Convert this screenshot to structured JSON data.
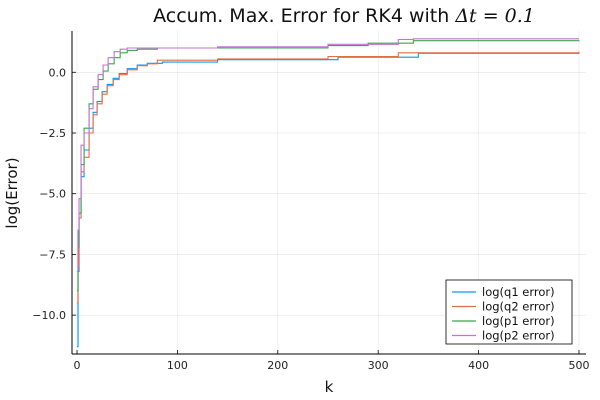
{
  "chart_data": {
    "type": "line",
    "title_text": "Accum. Max. Error for RK4 with ",
    "title_math": "Δt = 0.1",
    "xlabel": "k",
    "ylabel": "log(Error)",
    "xlim": [
      -5,
      507
    ],
    "ylim": [
      -11.6,
      1.7
    ],
    "xticks": [
      0,
      100,
      200,
      300,
      400,
      500
    ],
    "xtick_labels": [
      "0",
      "100",
      "200",
      "300",
      "400",
      "500"
    ],
    "yticks": [
      -10.0,
      -7.5,
      -5.0,
      -2.5,
      0.0
    ],
    "ytick_labels": [
      "−10.0",
      "−7.5",
      "−5.0",
      "−2.5",
      "0.0"
    ],
    "grid": true,
    "legend_position": "bottom-right",
    "step": true,
    "series": [
      {
        "name": "log(q1 error)",
        "color": "#009AFA",
        "x": [
          0,
          1,
          2,
          4,
          7,
          12,
          16,
          20,
          25,
          30,
          36,
          42,
          50,
          60,
          70,
          85,
          140,
          260,
          340,
          500
        ],
        "y": [
          -11.3,
          -8.2,
          -6.0,
          -4.3,
          -3.2,
          -2.3,
          -1.65,
          -1.2,
          -0.8,
          -0.5,
          -0.25,
          -0.05,
          0.15,
          0.3,
          0.37,
          0.42,
          0.52,
          0.62,
          0.78,
          0.8
        ]
      },
      {
        "name": "log(q2 error)",
        "color": "#E36F47",
        "x": [
          0,
          1,
          2,
          4,
          7,
          12,
          16,
          20,
          25,
          30,
          36,
          42,
          50,
          60,
          70,
          80,
          140,
          250,
          320,
          500
        ],
        "y": [
          -9.5,
          -8.0,
          -6.0,
          -4.1,
          -3.5,
          -2.5,
          -1.75,
          -1.3,
          -0.9,
          -0.55,
          -0.3,
          -0.1,
          0.1,
          0.27,
          0.35,
          0.5,
          0.55,
          0.65,
          0.8,
          0.85
        ]
      },
      {
        "name": "log(p1 error)",
        "color": "#3EA44E",
        "x": [
          0,
          1,
          2,
          4,
          7,
          12,
          16,
          21,
          26,
          31,
          37,
          43,
          50,
          60,
          80,
          140,
          250,
          290,
          335,
          500
        ],
        "y": [
          -9.0,
          -7.2,
          -5.8,
          -3.8,
          -2.3,
          -1.3,
          -0.7,
          -0.3,
          0.05,
          0.35,
          0.6,
          0.8,
          0.9,
          0.95,
          1.0,
          1.0,
          1.1,
          1.2,
          1.3,
          1.32
        ]
      },
      {
        "name": "log(p2 error)",
        "color": "#C371D2",
        "x": [
          0,
          1,
          2,
          4,
          7,
          12,
          16,
          21,
          26,
          31,
          37,
          43,
          50,
          60,
          80,
          140,
          250,
          320,
          335,
          500
        ],
        "y": [
          -8.2,
          -6.5,
          -5.2,
          -3.0,
          -2.5,
          -1.5,
          -0.6,
          -0.1,
          0.3,
          0.6,
          0.85,
          0.95,
          1.0,
          1.0,
          1.0,
          1.05,
          1.15,
          1.35,
          1.38,
          1.38
        ]
      }
    ]
  }
}
